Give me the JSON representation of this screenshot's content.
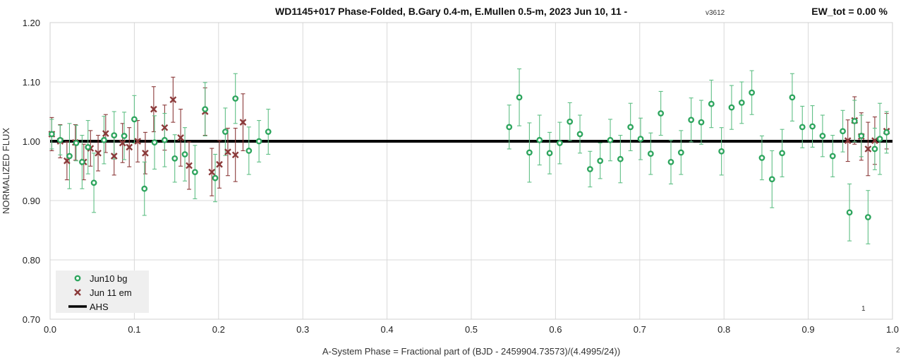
{
  "chart_data": {
    "type": "scatter",
    "title": "WD1145+017 Phase-Folded, B.Gary 0.4-m, E.Mullen 0.5-m, 2023 Jun 10, 11 -",
    "title_suffix": "v3612",
    "ew_label": "EW_tot = 0.00 %",
    "xlabel": "A-System Phase = Fractional part of (BJD - 2459904.73573)/(4.4995/24))",
    "ylabel": "NORMALIZED FLUX",
    "xlim": [
      0,
      1
    ],
    "ylim": [
      0.7,
      1.2
    ],
    "x_ticks": [
      "0.0",
      "0.1",
      "0.2",
      "0.3",
      "0.4",
      "0.5",
      "0.6",
      "0.7",
      "0.8",
      "0.9",
      "1.0"
    ],
    "y_ticks": [
      "0.70",
      "0.80",
      "0.90",
      "1.00",
      "1.10",
      "1.20"
    ],
    "grid": true,
    "legend_position": "bottom-left",
    "annotations": [
      "1",
      "2"
    ],
    "colors": {
      "jun10": "#2ea55e",
      "jun11": "#8b3a3a",
      "ahs": "#000000",
      "jun10_err": "#5fbf85",
      "jun11_err": "#8b3a3a"
    },
    "series": [
      {
        "name": "Jun10 bg",
        "marker": "circle",
        "points": [
          [
            0.002,
            1.012,
            0.025
          ],
          [
            0.012,
            1.002,
            0.025
          ],
          [
            0.023,
            0.975,
            0.055
          ],
          [
            0.031,
            0.997,
            0.03
          ],
          [
            0.038,
            0.965,
            0.045
          ],
          [
            0.045,
            0.99,
            0.045
          ],
          [
            0.052,
            0.93,
            0.05
          ],
          [
            0.064,
            1.002,
            0.04
          ],
          [
            0.076,
            1.01,
            0.04
          ],
          [
            0.088,
            1.009,
            0.04
          ],
          [
            0.1,
            1.037,
            0.04
          ],
          [
            0.112,
            0.92,
            0.045
          ],
          [
            0.124,
            0.998,
            0.045
          ],
          [
            0.136,
            1.002,
            0.045
          ],
          [
            0.148,
            0.971,
            0.04
          ],
          [
            0.16,
            0.978,
            0.045
          ],
          [
            0.172,
            0.948,
            0.045
          ],
          [
            0.184,
            1.054,
            0.045
          ],
          [
            0.196,
            0.938,
            0.04
          ],
          [
            0.208,
            1.016,
            0.04
          ],
          [
            0.22,
            1.072,
            0.042
          ],
          [
            0.236,
            0.984,
            0.04
          ],
          [
            0.248,
            1.0,
            0.035
          ],
          [
            0.259,
            1.016,
            0.038
          ],
          [
            0.545,
            1.024,
            0.037
          ],
          [
            0.557,
            1.074,
            0.048
          ],
          [
            0.569,
            0.981,
            0.05
          ],
          [
            0.581,
            1.002,
            0.042
          ],
          [
            0.593,
            0.98,
            0.035
          ],
          [
            0.605,
            0.997,
            0.035
          ],
          [
            0.617,
            1.033,
            0.032
          ],
          [
            0.629,
            1.012,
            0.032
          ],
          [
            0.641,
            0.953,
            0.03
          ],
          [
            0.653,
            0.967,
            0.03
          ],
          [
            0.665,
            1.002,
            0.035
          ],
          [
            0.677,
            0.97,
            0.04
          ],
          [
            0.689,
            1.024,
            0.04
          ],
          [
            0.701,
            1.004,
            0.035
          ],
          [
            0.713,
            0.979,
            0.035
          ],
          [
            0.725,
            1.047,
            0.037
          ],
          [
            0.737,
            0.965,
            0.037
          ],
          [
            0.749,
            0.981,
            0.037
          ],
          [
            0.761,
            1.036,
            0.037
          ],
          [
            0.773,
            1.032,
            0.037
          ],
          [
            0.785,
            1.063,
            0.04
          ],
          [
            0.797,
            0.983,
            0.04
          ],
          [
            0.809,
            1.057,
            0.037
          ],
          [
            0.821,
            1.065,
            0.035
          ],
          [
            0.833,
            1.082,
            0.037
          ],
          [
            0.845,
            0.972,
            0.037
          ],
          [
            0.857,
            0.936,
            0.048
          ],
          [
            0.869,
            0.98,
            0.04
          ],
          [
            0.881,
            1.074,
            0.04
          ],
          [
            0.893,
            1.024,
            0.035
          ],
          [
            0.905,
            1.025,
            0.035
          ],
          [
            0.917,
            1.009,
            0.035
          ],
          [
            0.929,
            0.975,
            0.035
          ],
          [
            0.941,
            1.017,
            0.035
          ],
          [
            0.949,
            0.88,
            0.048
          ],
          [
            0.955,
            1.034,
            0.035
          ],
          [
            0.963,
            1.009,
            0.035
          ],
          [
            0.971,
            0.872,
            0.045
          ],
          [
            0.979,
            0.987,
            0.035
          ],
          [
            0.985,
            1.004,
            0.06
          ],
          [
            0.993,
            1.015,
            0.035
          ]
        ]
      },
      {
        "name": "Jun 11 em",
        "marker": "x",
        "points": [
          [
            0.002,
            1.012,
            0.028
          ],
          [
            0.012,
            1.0,
            0.028
          ],
          [
            0.02,
            0.967,
            0.032
          ],
          [
            0.03,
            0.998,
            0.03
          ],
          [
            0.04,
            0.965,
            0.03
          ],
          [
            0.048,
            0.988,
            0.03
          ],
          [
            0.057,
            0.98,
            0.03
          ],
          [
            0.066,
            1.013,
            0.032
          ],
          [
            0.076,
            0.975,
            0.032
          ],
          [
            0.086,
            0.997,
            0.033
          ],
          [
            0.094,
            0.99,
            0.033
          ],
          [
            0.104,
            1.0,
            0.035
          ],
          [
            0.113,
            0.98,
            0.035
          ],
          [
            0.123,
            1.054,
            0.038
          ],
          [
            0.136,
            1.023,
            0.038
          ],
          [
            0.146,
            1.07,
            0.038
          ],
          [
            0.155,
            1.006,
            0.048
          ],
          [
            0.165,
            0.959,
            0.04
          ],
          [
            0.184,
            1.05,
            0.04
          ],
          [
            0.192,
            0.948,
            0.04
          ],
          [
            0.201,
            0.961,
            0.04
          ],
          [
            0.211,
            0.982,
            0.04
          ],
          [
            0.22,
            0.977,
            0.045
          ],
          [
            0.229,
            1.032,
            0.048
          ],
          [
            0.947,
            1.001,
            0.035
          ],
          [
            0.955,
            1.035,
            0.04
          ],
          [
            0.963,
            1.008,
            0.04
          ],
          [
            0.971,
            0.987,
            0.045
          ],
          [
            0.979,
            1.001,
            0.04
          ],
          [
            0.993,
            1.017,
            0.03
          ]
        ]
      },
      {
        "name": "AHS",
        "marker": "line",
        "points": [
          [
            0,
            1.0
          ],
          [
            1,
            1.0
          ]
        ]
      }
    ]
  }
}
